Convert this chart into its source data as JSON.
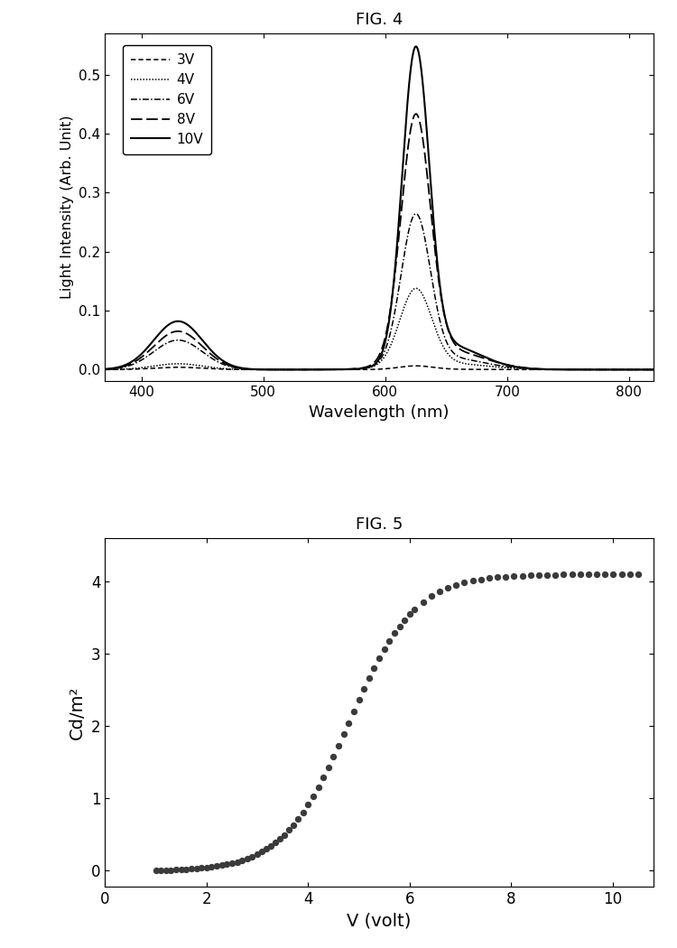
{
  "fig4_title": "FIG. 4",
  "fig5_title": "FIG. 5",
  "fig4_xlabel": "Wavelength (nm)",
  "fig4_ylabel": "Light Intensity (Arb. Unit)",
  "fig4_xlim": [
    370,
    820
  ],
  "fig4_ylim": [
    -0.02,
    0.57
  ],
  "fig4_xticks": [
    400,
    500,
    600,
    700,
    800
  ],
  "fig4_yticks": [
    0.0,
    0.1,
    0.2,
    0.3,
    0.4,
    0.5
  ],
  "fig5_xlabel": "V (volt)",
  "fig5_ylabel": "Cd/m²",
  "fig5_xlim": [
    0,
    10.8
  ],
  "fig5_ylim": [
    -0.22,
    4.6
  ],
  "fig5_xticks": [
    0,
    2,
    4,
    6,
    8,
    10
  ],
  "fig5_yticks": [
    0,
    1,
    2,
    3,
    4
  ],
  "background_color": "#ffffff",
  "line_color": "#000000",
  "spectra": {
    "3V": {
      "blue": [
        430,
        20,
        0.004
      ],
      "red": [
        625,
        14,
        0.006
      ]
    },
    "4V": {
      "blue": [
        430,
        20,
        0.01
      ],
      "red": [
        625,
        13,
        0.13
      ]
    },
    "6V": {
      "blue": [
        430,
        20,
        0.05
      ],
      "red": [
        625,
        12,
        0.25
      ]
    },
    "8V": {
      "blue": [
        430,
        20,
        0.065
      ],
      "red": [
        625,
        12,
        0.41
      ]
    },
    "10V": {
      "blue": [
        430,
        20,
        0.082
      ],
      "red": [
        625,
        11,
        0.52
      ]
    }
  }
}
